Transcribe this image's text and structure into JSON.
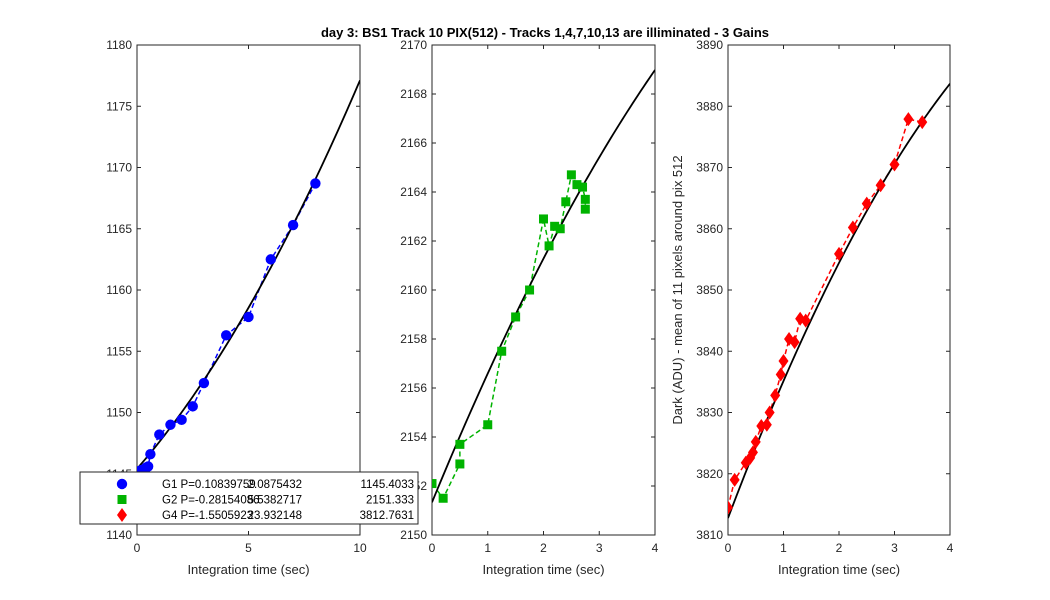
{
  "figure_title": "day 3: BS1  Track 10 PIX(512) - Tracks 1,4,7,10,13 are illiminated - 3 Gains",
  "chart_data": [
    {
      "type": "scatter",
      "name": "G1",
      "color": "#0000ff",
      "marker": "circle",
      "xlabel": "Integration time (sec)",
      "ylabel": "",
      "xlim": [
        0,
        10
      ],
      "ylim": [
        1140,
        1180
      ],
      "xticks": [
        0,
        5,
        10
      ],
      "yticks": [
        1140,
        1145,
        1150,
        1155,
        1160,
        1165,
        1170,
        1175,
        1180
      ],
      "x": [
        0.0,
        0.2,
        0.4,
        0.5,
        0.6,
        1.0,
        1.5,
        2.0,
        2.5,
        3.0,
        4.0,
        5.0,
        6.0,
        7.0,
        8.0
      ],
      "y": [
        1145.2,
        1145.3,
        1145.5,
        1145.6,
        1146.6,
        1148.2,
        1149.0,
        1149.4,
        1150.5,
        1152.4,
        1156.3,
        1157.8,
        1162.5,
        1165.3,
        1168.7
      ],
      "fit": {
        "P": 0.10839759,
        "a": 2.0875432,
        "b": 1145.4033
      }
    },
    {
      "type": "scatter",
      "name": "G2",
      "color": "#00b300",
      "marker": "square",
      "xlabel": "Integration time (sec)",
      "ylabel": "",
      "xlim": [
        0,
        4
      ],
      "ylim": [
        2150,
        2170
      ],
      "xticks": [
        0,
        1,
        2,
        3,
        4
      ],
      "yticks": [
        2150,
        2152,
        2154,
        2156,
        2158,
        2160,
        2162,
        2164,
        2166,
        2168,
        2170
      ],
      "x": [
        0.0,
        0.2,
        0.5,
        0.5,
        1.0,
        1.25,
        1.5,
        1.75,
        2.0,
        2.1,
        2.2,
        2.3,
        2.4,
        2.5,
        2.6,
        2.7,
        2.75,
        2.75
      ],
      "y": [
        2152.1,
        2151.5,
        2152.9,
        2153.7,
        2154.5,
        2157.5,
        2158.9,
        2160.0,
        2162.9,
        2161.8,
        2162.6,
        2162.5,
        2163.6,
        2164.7,
        2164.3,
        2164.2,
        2163.7,
        2163.3
      ],
      "fit": {
        "P": -0.28154086,
        "a": 5.5382717,
        "b": 2151.333
      }
    },
    {
      "type": "scatter",
      "name": "G4",
      "color": "#ff0000",
      "marker": "diamond",
      "xlabel": "Integration time (sec)",
      "ylabel": "Dark (ADU) - mean of 11 pixels around pix 512",
      "xlim": [
        0,
        4
      ],
      "ylim": [
        3810,
        3890
      ],
      "xticks": [
        0,
        1,
        2,
        3,
        4
      ],
      "yticks": [
        3810,
        3820,
        3830,
        3840,
        3850,
        3860,
        3870,
        3880,
        3890
      ],
      "x": [
        0.0,
        0.12,
        0.32,
        0.4,
        0.45,
        0.5,
        0.6,
        0.7,
        0.75,
        0.85,
        0.95,
        1.0,
        1.1,
        1.2,
        1.3,
        1.4,
        2.0,
        2.25,
        2.5,
        2.75,
        3.0,
        3.25,
        3.5
      ],
      "y": [
        3814.5,
        3819.0,
        3821.8,
        3822.6,
        3823.5,
        3825.2,
        3827.8,
        3828.0,
        3830.0,
        3832.8,
        3836.2,
        3838.4,
        3842.0,
        3841.5,
        3845.3,
        3845.0,
        3855.9,
        3860.2,
        3864.1,
        3867.1,
        3870.5,
        3877.9,
        3877.4
      ],
      "fit": {
        "P": -1.5505923,
        "a": 23.932148,
        "b": 3812.7631
      }
    }
  ],
  "legend": {
    "placement": "lower-left",
    "entries": [
      {
        "label": "G1 P=0.10839759",
        "v1": "2.0875432",
        "v2": "1145.4033",
        "color": "#0000ff",
        "marker": "circle"
      },
      {
        "label": "G2 P=-0.28154086",
        "v1": "5.5382717",
        "v2": "2151.333",
        "color": "#00b300",
        "marker": "square"
      },
      {
        "label": "G4 P=-1.5505923",
        "v1": "23.932148",
        "v2": "3812.7631",
        "color": "#ff0000",
        "marker": "diamond"
      }
    ]
  }
}
